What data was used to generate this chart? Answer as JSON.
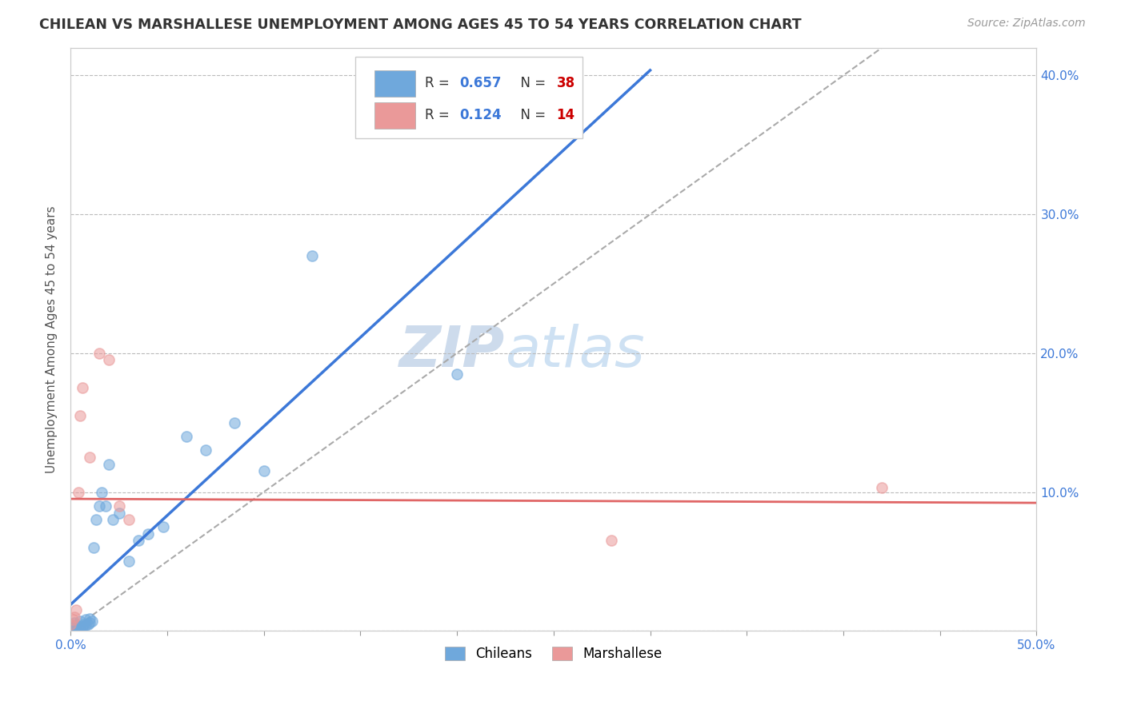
{
  "title": "CHILEAN VS MARSHALLESE UNEMPLOYMENT AMONG AGES 45 TO 54 YEARS CORRELATION CHART",
  "source": "Source: ZipAtlas.com",
  "ylabel": "Unemployment Among Ages 45 to 54 years",
  "xlim": [
    0.0,
    0.5
  ],
  "ylim": [
    0.0,
    0.42
  ],
  "xticks": [
    0.0,
    0.05,
    0.1,
    0.15,
    0.2,
    0.25,
    0.3,
    0.35,
    0.4,
    0.45,
    0.5
  ],
  "yticks": [
    0.0,
    0.1,
    0.2,
    0.3,
    0.4
  ],
  "chilean_color": "#6fa8dc",
  "marshallese_color": "#ea9999",
  "chilean_line_color": "#3c78d8",
  "marshallese_line_color": "#e06666",
  "diag_line_color": "#aaaaaa",
  "background_color": "#ffffff",
  "grid_color": "#bbbbbb",
  "chilean_R": "0.657",
  "chilean_N": "38",
  "marshallese_R": "0.124",
  "marshallese_N": "14",
  "chilean_scatter_x": [
    0.0,
    0.0,
    0.0,
    0.001,
    0.001,
    0.002,
    0.002,
    0.003,
    0.003,
    0.004,
    0.005,
    0.005,
    0.006,
    0.007,
    0.008,
    0.008,
    0.009,
    0.01,
    0.01,
    0.011,
    0.012,
    0.013,
    0.015,
    0.016,
    0.018,
    0.02,
    0.022,
    0.025,
    0.03,
    0.035,
    0.04,
    0.048,
    0.06,
    0.07,
    0.085,
    0.1,
    0.125,
    0.2
  ],
  "chilean_scatter_y": [
    0.0,
    0.002,
    0.005,
    0.001,
    0.003,
    0.002,
    0.006,
    0.001,
    0.004,
    0.003,
    0.002,
    0.007,
    0.003,
    0.005,
    0.004,
    0.008,
    0.005,
    0.006,
    0.009,
    0.007,
    0.06,
    0.08,
    0.09,
    0.1,
    0.09,
    0.12,
    0.08,
    0.085,
    0.05,
    0.065,
    0.07,
    0.075,
    0.14,
    0.13,
    0.15,
    0.115,
    0.27,
    0.185
  ],
  "marshallese_scatter_x": [
    0.0,
    0.001,
    0.002,
    0.003,
    0.004,
    0.005,
    0.006,
    0.01,
    0.015,
    0.02,
    0.025,
    0.03,
    0.28,
    0.42
  ],
  "marshallese_scatter_y": [
    0.005,
    0.008,
    0.01,
    0.015,
    0.1,
    0.155,
    0.175,
    0.125,
    0.2,
    0.195,
    0.09,
    0.08,
    0.065,
    0.103
  ]
}
